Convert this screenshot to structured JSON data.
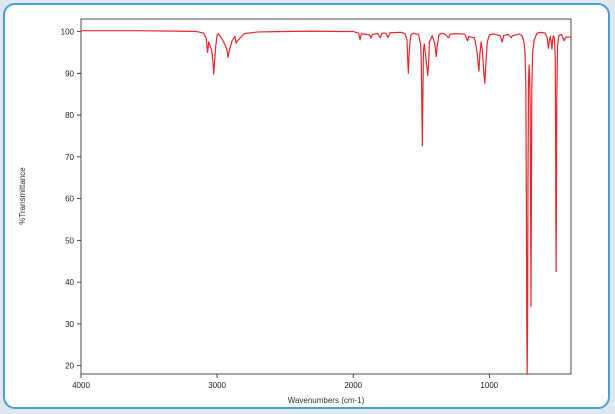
{
  "chart_data": {
    "type": "line",
    "title": "",
    "xlabel": "Wavenumbers (cm-1)",
    "ylabel": "%Transmittance",
    "x_reversed": true,
    "xlim": [
      4000,
      400
    ],
    "ylim": [
      18,
      103
    ],
    "x_ticks": [
      4000,
      3000,
      2000,
      1000
    ],
    "y_ticks": [
      20,
      30,
      40,
      50,
      60,
      70,
      80,
      90,
      100
    ],
    "grid": false,
    "line_color": "#e8262b",
    "series": [
      {
        "name": "",
        "points": [
          [
            4000,
            100.2
          ],
          [
            3600,
            100.2
          ],
          [
            3300,
            100.1
          ],
          [
            3150,
            100.0
          ],
          [
            3100,
            99.6
          ],
          [
            3080,
            98.5
          ],
          [
            3070,
            95.0
          ],
          [
            3062,
            97.5
          ],
          [
            3040,
            95.5
          ],
          [
            3030,
            92.5
          ],
          [
            3025,
            89.8
          ],
          [
            3020,
            92.0
          ],
          [
            3010,
            96.5
          ],
          [
            3000,
            99.2
          ],
          [
            2990,
            99.5
          ],
          [
            2960,
            98.0
          ],
          [
            2930,
            96.0
          ],
          [
            2920,
            93.8
          ],
          [
            2910,
            95.5
          ],
          [
            2890,
            97.8
          ],
          [
            2870,
            98.8
          ],
          [
            2860,
            97.2
          ],
          [
            2850,
            97.8
          ],
          [
            2800,
            99.5
          ],
          [
            2700,
            99.9
          ],
          [
            2500,
            100.0
          ],
          [
            2300,
            100.1
          ],
          [
            2100,
            100.0
          ],
          [
            2000,
            100.0
          ],
          [
            1960,
            99.6
          ],
          [
            1950,
            98.0
          ],
          [
            1940,
            99.5
          ],
          [
            1880,
            99.2
          ],
          [
            1870,
            98.4
          ],
          [
            1860,
            99.3
          ],
          [
            1820,
            99.5
          ],
          [
            1800,
            98.5
          ],
          [
            1790,
            99.6
          ],
          [
            1760,
            99.6
          ],
          [
            1745,
            98.6
          ],
          [
            1730,
            99.7
          ],
          [
            1650,
            99.8
          ],
          [
            1620,
            99.5
          ],
          [
            1605,
            98.0
          ],
          [
            1600,
            93.5
          ],
          [
            1595,
            90.0
          ],
          [
            1590,
            94.0
          ],
          [
            1585,
            97.0
          ],
          [
            1575,
            99.2
          ],
          [
            1560,
            99.6
          ],
          [
            1520,
            99.3
          ],
          [
            1505,
            97.0
          ],
          [
            1500,
            93.0
          ],
          [
            1495,
            80.0
          ],
          [
            1492,
            72.6
          ],
          [
            1489,
            82.0
          ],
          [
            1484,
            95.5
          ],
          [
            1478,
            97.0
          ],
          [
            1460,
            92.0
          ],
          [
            1453,
            89.5
          ],
          [
            1446,
            92.0
          ],
          [
            1440,
            97.5
          ],
          [
            1420,
            99.0
          ],
          [
            1400,
            97.0
          ],
          [
            1390,
            94.0
          ],
          [
            1383,
            96.5
          ],
          [
            1370,
            99.3
          ],
          [
            1340,
            99.6
          ],
          [
            1320,
            99.2
          ],
          [
            1300,
            98.5
          ],
          [
            1290,
            99.3
          ],
          [
            1260,
            99.5
          ],
          [
            1180,
            99.4
          ],
          [
            1160,
            97.8
          ],
          [
            1150,
            98.8
          ],
          [
            1110,
            98.5
          ],
          [
            1100,
            97.0
          ],
          [
            1090,
            95.0
          ],
          [
            1080,
            91.5
          ],
          [
            1076,
            90.5
          ],
          [
            1070,
            94.5
          ],
          [
            1060,
            97.5
          ],
          [
            1050,
            95.0
          ],
          [
            1040,
            90.0
          ],
          [
            1033,
            87.6
          ],
          [
            1026,
            92.0
          ],
          [
            1015,
            97.5
          ],
          [
            1000,
            99.2
          ],
          [
            970,
            99.4
          ],
          [
            920,
            99.0
          ],
          [
            905,
            97.5
          ],
          [
            895,
            99.0
          ],
          [
            860,
            99.3
          ],
          [
            840,
            98.5
          ],
          [
            830,
            99.0
          ],
          [
            780,
            99.4
          ],
          [
            760,
            99.0
          ],
          [
            745,
            97.5
          ],
          [
            738,
            95.0
          ],
          [
            732,
            88.0
          ],
          [
            728,
            60.0
          ],
          [
            725,
            30.0
          ],
          [
            722,
            18.0
          ],
          [
            719,
            30.0
          ],
          [
            716,
            65.0
          ],
          [
            712,
            88.0
          ],
          [
            708,
            92.0
          ],
          [
            704,
            89.5
          ],
          [
            700,
            82.0
          ],
          [
            697,
            60.0
          ],
          [
            694,
            34.2
          ],
          [
            691,
            60.0
          ],
          [
            688,
            86.0
          ],
          [
            682,
            95.0
          ],
          [
            670,
            98.0
          ],
          [
            650,
            99.6
          ],
          [
            620,
            99.8
          ],
          [
            590,
            99.6
          ],
          [
            575,
            98.5
          ],
          [
            566,
            96.0
          ],
          [
            560,
            97.5
          ],
          [
            552,
            98.8
          ],
          [
            545,
            97.5
          ],
          [
            540,
            95.8
          ],
          [
            536,
            97.8
          ],
          [
            530,
            99.0
          ],
          [
            522,
            98.5
          ],
          [
            516,
            94.0
          ],
          [
            513,
            75.0
          ],
          [
            511,
            55.0
          ],
          [
            509,
            42.5
          ],
          [
            507,
            60.0
          ],
          [
            504,
            85.0
          ],
          [
            499,
            96.5
          ],
          [
            490,
            99.0
          ],
          [
            470,
            99.3
          ],
          [
            460,
            98.5
          ],
          [
            450,
            97.8
          ],
          [
            440,
            98.6
          ],
          [
            400,
            98.7
          ]
        ]
      }
    ]
  }
}
